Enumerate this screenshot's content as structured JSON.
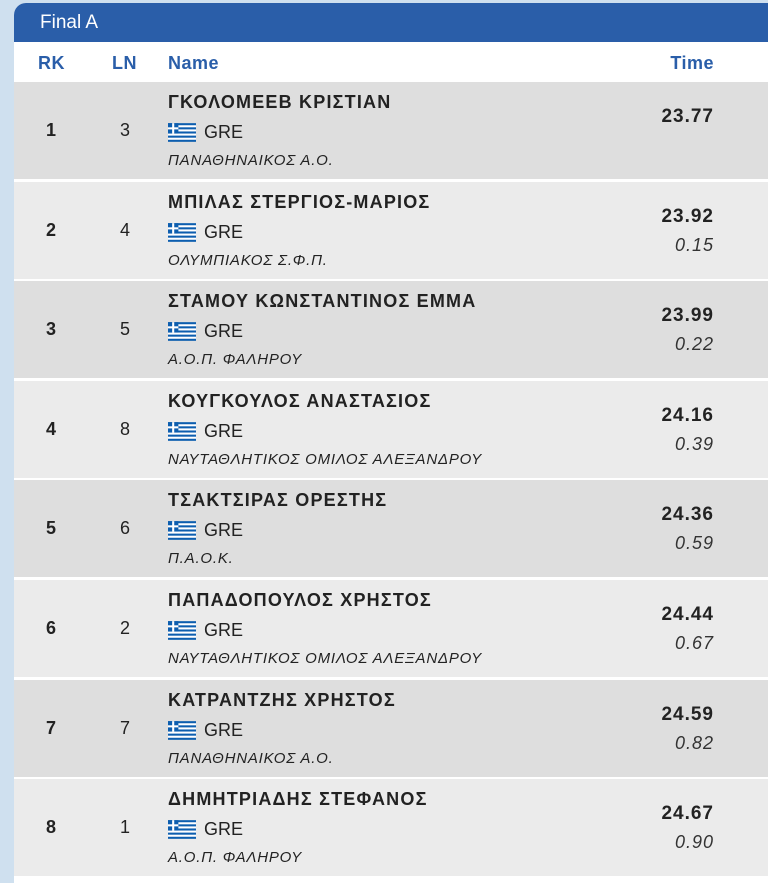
{
  "section_title": "Final A",
  "columns": {
    "rk": "RK",
    "ln": "LN",
    "name": "Name",
    "time": "Time"
  },
  "colors": {
    "header": "#2a5ea9",
    "row_dark": "#dedede",
    "row_light": "#ebebeb"
  },
  "rows": [
    {
      "rk": "1",
      "ln": "3",
      "name": "ΓΚΟΛΟΜΕΕΒ ΚΡΙΣΤΙΑΝ",
      "nation": "GRE",
      "club": "ΠΑΝΑΘΗΝΑΙΚΟΣ Α.Ο.",
      "time": "23.77",
      "diff": ""
    },
    {
      "rk": "2",
      "ln": "4",
      "name": "ΜΠΙΛΑΣ ΣΤΕΡΓΙΟΣ-ΜΑΡΙΟΣ",
      "nation": "GRE",
      "club": "ΟΛΥΜΠΙΑΚΟΣ Σ.Φ.Π.",
      "time": "23.92",
      "diff": "0.15"
    },
    {
      "rk": "3",
      "ln": "5",
      "name": "ΣΤΑΜΟΥ ΚΩΝΣΤΑΝΤΙΝΟΣ ΕΜΜΑ",
      "nation": "GRE",
      "club": "Α.Ο.Π. ΦΑΛΗΡΟΥ",
      "time": "23.99",
      "diff": "0.22"
    },
    {
      "rk": "4",
      "ln": "8",
      "name": "ΚΟΥΓΚΟΥΛΟΣ ΑΝΑΣΤΑΣΙΟΣ",
      "nation": "GRE",
      "club": "ΝΑΥΤΑΘΛΗΤΙΚΟΣ ΟΜΙΛΟΣ ΑΛΕΞΑΝΔΡΟΥ",
      "time": "24.16",
      "diff": "0.39"
    },
    {
      "rk": "5",
      "ln": "6",
      "name": "ΤΣΑΚΤΣΙΡΑΣ ΟΡΕΣΤΗΣ",
      "nation": "GRE",
      "club": "Π.Α.Ο.Κ.",
      "time": "24.36",
      "diff": "0.59"
    },
    {
      "rk": "6",
      "ln": "2",
      "name": "ΠΑΠΑΔΟΠΟΥΛΟΣ ΧΡΗΣΤΟΣ",
      "nation": "GRE",
      "club": "ΝΑΥΤΑΘΛΗΤΙΚΟΣ ΟΜΙΛΟΣ ΑΛΕΞΑΝΔΡΟΥ",
      "time": "24.44",
      "diff": "0.67"
    },
    {
      "rk": "7",
      "ln": "7",
      "name": "ΚΑΤΡΑΝΤΖΗΣ ΧΡΗΣΤΟΣ",
      "nation": "GRE",
      "club": "ΠΑΝΑΘΗΝΑΙΚΟΣ Α.Ο.",
      "time": "24.59",
      "diff": "0.82"
    },
    {
      "rk": "8",
      "ln": "1",
      "name": "ΔΗΜΗΤΡΙΑΔΗΣ ΣΤΕΦΑΝΟΣ",
      "nation": "GRE",
      "club": "Α.Ο.Π. ΦΑΛΗΡΟΥ",
      "time": "24.67",
      "diff": "0.90"
    }
  ]
}
